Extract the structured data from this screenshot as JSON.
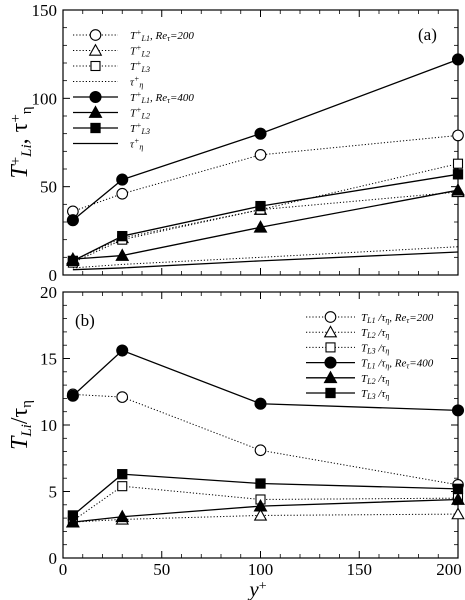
{
  "figure": {
    "xlabel_main": "y",
    "xlabel_sup": "+",
    "xticks": [
      "0",
      "50",
      "100",
      "150",
      "200"
    ]
  },
  "chart_data": [
    {
      "type": "line",
      "panel_label": "(a)",
      "ylabel_text": "T",
      "ylabel_sup": "+",
      "ylabel_sub": "Li",
      "ylabel_sep": ",  ",
      "ylabel_text2": "τ",
      "ylabel_sup2": "+",
      "ylabel_sub2": "η",
      "xlim": [
        0,
        200
      ],
      "ylim": [
        0,
        150
      ],
      "yticks": [
        "0",
        "50",
        "100",
        "150"
      ],
      "x": [
        5,
        30,
        100,
        200
      ],
      "series": [
        {
          "name": "T+L1, Reτ=200",
          "legend_main": "T",
          "legend_sup": "+",
          "legend_sub": "L1",
          "legend_suffix": ", Re",
          "legend_suffix_sub": "τ",
          "legend_suffix_tail": "=200",
          "values": [
            36,
            46,
            68,
            79
          ],
          "style": "dotted",
          "marker": "circle",
          "filled": false
        },
        {
          "name": "T+L2",
          "legend_main": "T",
          "legend_sup": "+",
          "legend_sub": "L2",
          "values": [
            8,
            21,
            37,
            47
          ],
          "style": "dotted",
          "marker": "triangle",
          "filled": false
        },
        {
          "name": "T+L3",
          "legend_main": "T",
          "legend_sup": "+",
          "legend_sub": "L3",
          "values": [
            7,
            20,
            37,
            63
          ],
          "style": "dotted",
          "marker": "square",
          "filled": false
        },
        {
          "name": "τ+η",
          "legend_main": "τ",
          "legend_sup": "+",
          "legend_sub": "η",
          "values": [
            4,
            6,
            10,
            16
          ],
          "style": "dotted",
          "marker": "none",
          "filled": false
        },
        {
          "name": "T+L1, Reτ=400",
          "legend_main": "T",
          "legend_sup": "+",
          "legend_sub": "L1",
          "legend_suffix": ", Re",
          "legend_suffix_sub": "τ",
          "legend_suffix_tail": "=400",
          "values": [
            31,
            54,
            80,
            122
          ],
          "style": "solid",
          "marker": "circle",
          "filled": true
        },
        {
          "name": "T+L2",
          "legend_main": "T",
          "legend_sup": "+",
          "legend_sub": "L2",
          "values": [
            9,
            11,
            27,
            48
          ],
          "style": "solid",
          "marker": "triangle",
          "filled": true
        },
        {
          "name": "T+L3",
          "legend_main": "T",
          "legend_sup": "+",
          "legend_sub": "L3",
          "values": [
            8,
            22,
            39,
            57
          ],
          "style": "solid",
          "marker": "square",
          "filled": true
        },
        {
          "name": "τ+η",
          "legend_main": "τ",
          "legend_sup": "+",
          "legend_sub": "η",
          "values": [
            3,
            4,
            8,
            13
          ],
          "style": "solid",
          "marker": "none",
          "filled": false
        }
      ],
      "legend_placement": "top-left"
    },
    {
      "type": "line",
      "panel_label": "(b)",
      "ylabel_text": "T",
      "ylabel_sub": "Li",
      "ylabel_tail": "/τ",
      "ylabel_tail_sub": "η",
      "xlim": [
        0,
        200
      ],
      "ylim": [
        0,
        20
      ],
      "yticks": [
        "0",
        "5",
        "10",
        "15",
        "20"
      ],
      "x": [
        5,
        30,
        100,
        200
      ],
      "series": [
        {
          "name": "TL1/τη, Reτ=200",
          "legend_main": "T",
          "legend_sub": "L1",
          "legend_mid": " /τ",
          "legend_mid_sub": "η",
          "legend_suffix": ", Re",
          "legend_suffix_sub": "τ",
          "legend_suffix_tail": "=200",
          "values": [
            12.3,
            12.1,
            8.1,
            5.5
          ],
          "style": "dotted",
          "marker": "circle",
          "filled": false
        },
        {
          "name": "TL2/τη",
          "legend_main": "T",
          "legend_sub": "L2",
          "legend_mid": " /τ",
          "legend_mid_sub": "η",
          "values": [
            2.7,
            2.9,
            3.2,
            3.3
          ],
          "style": "dotted",
          "marker": "triangle",
          "filled": false
        },
        {
          "name": "TL3/τη",
          "legend_main": "T",
          "legend_sub": "L3",
          "legend_mid": " /τ",
          "legend_mid_sub": "η",
          "values": [
            2.8,
            5.4,
            4.4,
            4.5
          ],
          "style": "dotted",
          "marker": "square",
          "filled": false
        },
        {
          "name": "TL1/τη, Reτ=400",
          "legend_main": "T",
          "legend_sub": "L1",
          "legend_mid": " /τ",
          "legend_mid_sub": "η",
          "legend_suffix": ", Re",
          "legend_suffix_sub": "τ",
          "legend_suffix_tail": "=400",
          "values": [
            12.2,
            15.6,
            11.6,
            11.1
          ],
          "style": "solid",
          "marker": "circle",
          "filled": true
        },
        {
          "name": "TL2/τη",
          "legend_main": "T",
          "legend_sub": "L2",
          "legend_mid": " /τ",
          "legend_mid_sub": "η",
          "values": [
            2.7,
            3.1,
            3.9,
            4.4
          ],
          "style": "solid",
          "marker": "triangle",
          "filled": true
        },
        {
          "name": "TL3/τη",
          "legend_main": "T",
          "legend_sub": "L3",
          "legend_mid": " /τ",
          "legend_mid_sub": "η",
          "values": [
            3.2,
            6.3,
            5.6,
            5.2
          ],
          "style": "solid",
          "marker": "square",
          "filled": true
        }
      ],
      "legend_placement": "top-right"
    }
  ]
}
